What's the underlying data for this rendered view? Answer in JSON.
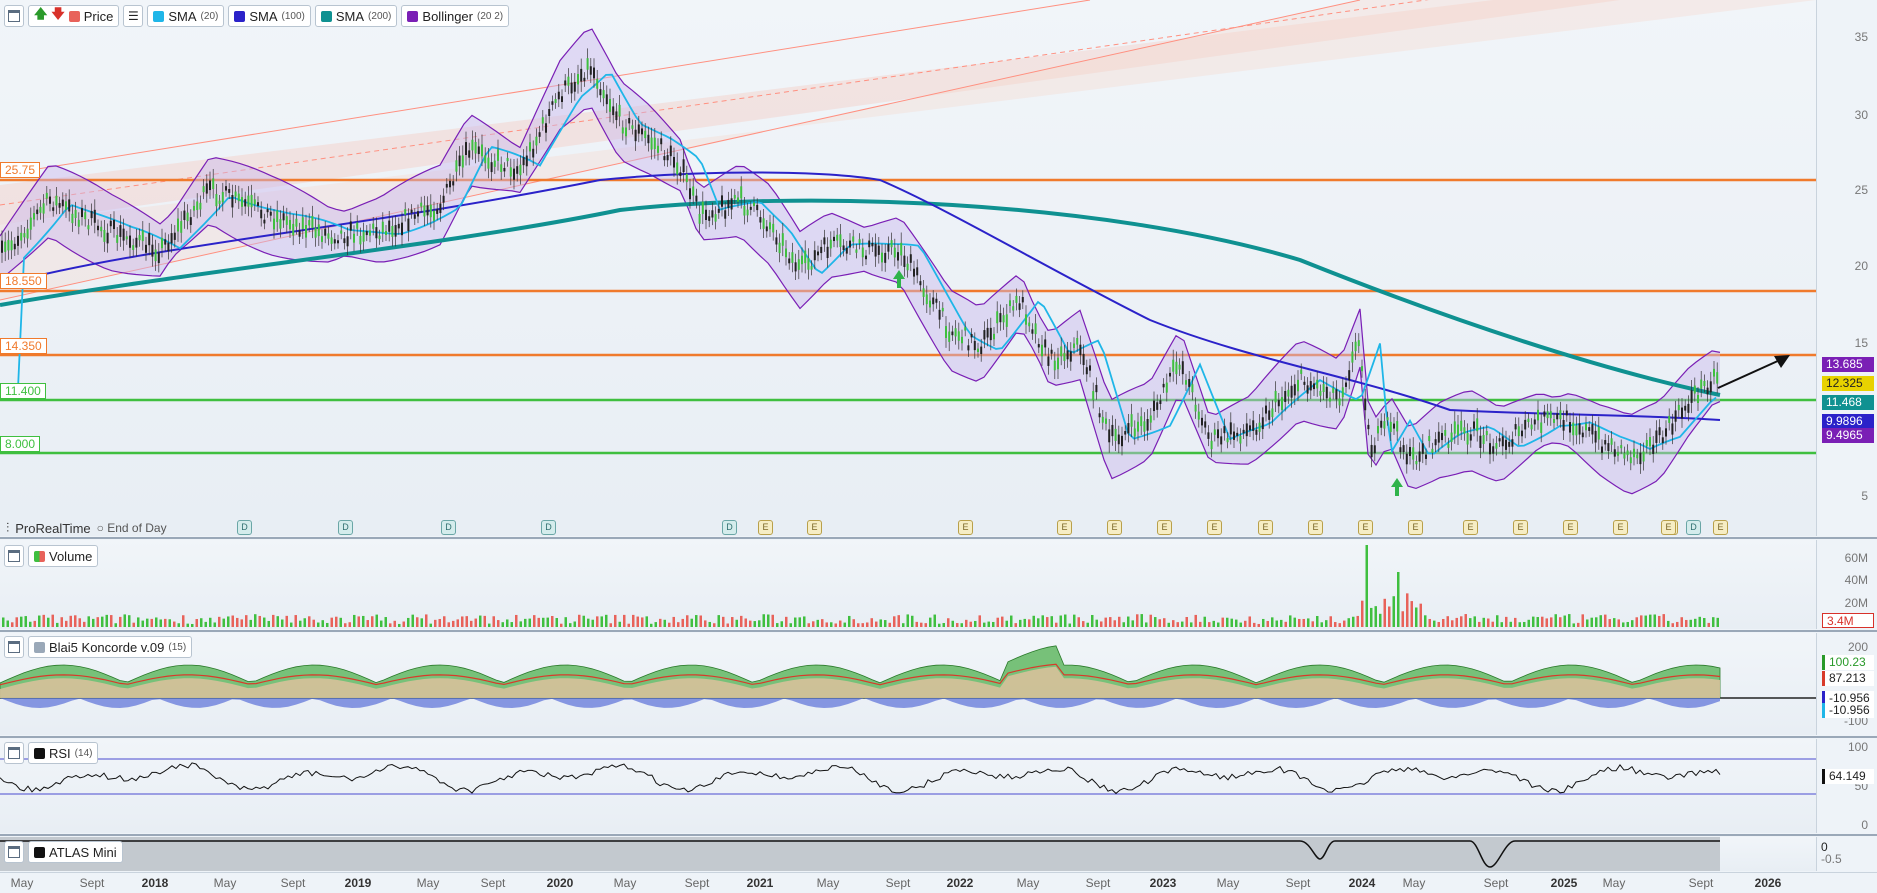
{
  "toolbar": {
    "price_label": "Price",
    "indicators": [
      {
        "label": "SMA",
        "param": "(20)",
        "color": "#1fb6e8"
      },
      {
        "label": "SMA",
        "param": "(100)",
        "color": "#2b22c9"
      },
      {
        "label": "SMA",
        "param": "(200)",
        "color": "#0f9191"
      },
      {
        "label": "Bollinger",
        "param": "(20 2)",
        "color": "#7a1fb5"
      }
    ]
  },
  "main": {
    "y_ticks": [
      "35",
      "30",
      "25",
      "20",
      "15",
      "5"
    ],
    "levels": [
      {
        "label": "25.75",
        "color": "#f07a2c"
      },
      {
        "label": "18.550",
        "color": "#f07a2c"
      },
      {
        "label": "14.350",
        "color": "#f07a2c"
      },
      {
        "label": "11.400",
        "color": "#3fbf3f"
      },
      {
        "label": "8.000",
        "color": "#3fbf3f"
      }
    ],
    "price_tags": [
      {
        "label": "13.685",
        "color": "#7a1fb5"
      },
      {
        "label": "12.325",
        "color": "#e8d200",
        "text_color": "#222"
      },
      {
        "label": "11.468",
        "color": "#0f9191"
      },
      {
        "label": "9.9896",
        "color": "#2b22c9"
      },
      {
        "label": "9.4965",
        "color": "#7a1fb5"
      }
    ],
    "brand": "ProRealTime",
    "end_of_day": "End of Day",
    "events": [
      "D",
      "D",
      "D",
      "D",
      "D",
      "E",
      "E",
      "E",
      "E",
      "E",
      "E",
      "E",
      "E",
      "E",
      "E",
      "E",
      "E",
      "E",
      "E",
      "E",
      "E",
      "E",
      "E",
      "D"
    ]
  },
  "volume": {
    "title": "Volume",
    "y_ticks": [
      "60M",
      "40M",
      "20M"
    ],
    "last_value": "3.4M"
  },
  "koncorde": {
    "title": "Blai5 Koncorde v.09",
    "param": "(15)",
    "y_ticks": [
      "200",
      "100",
      "-100"
    ],
    "tags": [
      {
        "label": "100.23",
        "color": "#2a9a2a"
      },
      {
        "label": "87.213",
        "color": "#d83a2a"
      },
      {
        "label": "-10.956",
        "color": "#2b22c9"
      },
      {
        "label": "-10.956",
        "color": "#1fb6e8"
      }
    ]
  },
  "rsi": {
    "title": "RSI",
    "param": "(14)",
    "y_ticks": [
      "100",
      "50",
      "0"
    ],
    "last_value": "64.149"
  },
  "atlas": {
    "title": "ATLAS Mini",
    "y_ticks": [
      "0",
      "-0.5"
    ]
  },
  "x_axis": {
    "labels": [
      {
        "t": "May",
        "year": false
      },
      {
        "t": "Sept",
        "year": false
      },
      {
        "t": "2018",
        "year": true
      },
      {
        "t": "May",
        "year": false
      },
      {
        "t": "Sept",
        "year": false
      },
      {
        "t": "2019",
        "year": true
      },
      {
        "t": "May",
        "year": false
      },
      {
        "t": "Sept",
        "year": false
      },
      {
        "t": "2020",
        "year": true
      },
      {
        "t": "May",
        "year": false
      },
      {
        "t": "Sept",
        "year": false
      },
      {
        "t": "2021",
        "year": true
      },
      {
        "t": "May",
        "year": false
      },
      {
        "t": "Sept",
        "year": false
      },
      {
        "t": "2022",
        "year": true
      },
      {
        "t": "May",
        "year": false
      },
      {
        "t": "Sept",
        "year": false
      },
      {
        "t": "2023",
        "year": true
      },
      {
        "t": "May",
        "year": false
      },
      {
        "t": "Sept",
        "year": false
      },
      {
        "t": "2024",
        "year": true
      },
      {
        "t": "May",
        "year": false
      },
      {
        "t": "Sept",
        "year": false
      },
      {
        "t": "2025",
        "year": true
      },
      {
        "t": "May",
        "year": false
      },
      {
        "t": "Sept",
        "year": false
      },
      {
        "t": "2026",
        "year": true
      }
    ]
  }
}
